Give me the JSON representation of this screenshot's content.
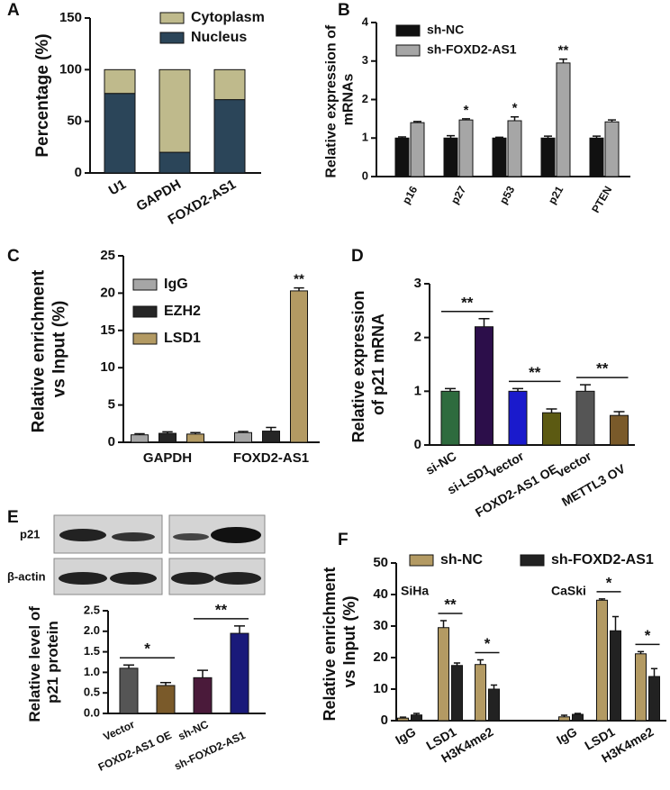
{
  "chart_data": [
    {
      "type": "bar",
      "stacked": true,
      "label": "A",
      "ylabel": "Percentage (%)",
      "categories": [
        "U1",
        "GAPDH",
        "FOXD2-AS1"
      ],
      "series": [
        {
          "name": "Nucleus",
          "color": "#2b4559",
          "values": [
            77,
            20,
            71
          ]
        },
        {
          "name": "Cytoplasm",
          "color": "#bfba8c",
          "values": [
            23,
            80,
            29
          ]
        }
      ],
      "ylim": [
        0,
        150
      ],
      "yticks": [
        0,
        50,
        100,
        150
      ]
    },
    {
      "type": "bar",
      "label": "B",
      "ylabel": "Relative expression of mRNAs",
      "categories": [
        "p16",
        "p27",
        "p53",
        "p21",
        "PTEN"
      ],
      "series": [
        {
          "name": "sh-NC",
          "color": "#111111",
          "values": [
            1,
            1,
            1,
            1,
            1
          ],
          "errors": [
            0.03,
            0.06,
            0.02,
            0.05,
            0.05
          ]
        },
        {
          "name": "sh-FOXD2-AS1",
          "color": "#a6a6a6",
          "values": [
            1.4,
            1.47,
            1.45,
            2.95,
            1.42
          ],
          "errors": [
            0.03,
            0.03,
            0.1,
            0.1,
            0.05
          ]
        }
      ],
      "ylim": [
        0,
        4
      ],
      "yticks": [
        0,
        1,
        2,
        3,
        4
      ],
      "annotations": [
        "*",
        "*",
        "**"
      ]
    },
    {
      "type": "bar",
      "label": "C",
      "ylabel": "Relative enrichment vs Input (%)",
      "categories": [
        "GAPDH",
        "FOXD2-AS1"
      ],
      "series": [
        {
          "name": "IgG",
          "color": "#a6a6a6",
          "values": [
            1.0,
            1.3
          ],
          "errors": [
            0.15,
            0.15
          ]
        },
        {
          "name": "EZH2",
          "color": "#262626",
          "values": [
            1.2,
            1.5
          ],
          "errors": [
            0.2,
            0.5
          ]
        },
        {
          "name": "LSD1",
          "color": "#b39a63",
          "values": [
            1.1,
            20.3
          ],
          "errors": [
            0.2,
            0.4
          ]
        }
      ],
      "ylim": [
        0,
        25
      ],
      "yticks": [
        0,
        5,
        10,
        15,
        20,
        25
      ],
      "annotations": [
        "**"
      ]
    },
    {
      "type": "bar",
      "label": "D",
      "ylabel": "Relative expression of p21 mRNA",
      "categories": [
        "si-NC",
        "si-LSD1",
        "vector",
        "FOXD2-AS1 OE",
        "vector",
        "METTL3 OV"
      ],
      "values": [
        1.0,
        2.2,
        1.0,
        0.6,
        1.0,
        0.55
      ],
      "errors": [
        0.05,
        0.15,
        0.05,
        0.07,
        0.12,
        0.07
      ],
      "colors": [
        "#2e6b3e",
        "#2c0e4a",
        "#1a1acc",
        "#5c5a12",
        "#555555",
        "#7a5a2a"
      ],
      "ylim": [
        0,
        3
      ],
      "yticks": [
        0,
        1,
        2,
        3
      ],
      "annotations": [
        "**",
        "**",
        "**"
      ]
    },
    {
      "type": "bar",
      "label": "E",
      "ylabel": "Relative level of p21 protein",
      "blot_labels": [
        "p21",
        "β-actin"
      ],
      "categories": [
        "Vector",
        "FOXD2-AS1 OE",
        "sh-NC",
        "sh-FOXD2-AS1"
      ],
      "values": [
        1.1,
        0.68,
        0.87,
        1.95
      ],
      "errors": [
        0.08,
        0.07,
        0.18,
        0.18
      ],
      "colors": [
        "#555555",
        "#7a5a2a",
        "#4a1a3a",
        "#1a1a7a"
      ],
      "ylim": [
        0,
        2.5
      ],
      "yticks": [
        {
          "value": 0,
          "label": "0.0"
        },
        0.5,
        {
          "value": 1,
          "label": "1.0"
        },
        1.5,
        {
          "value": 2,
          "label": "2.0"
        },
        2.5
      ],
      "annotations": [
        "*",
        "**"
      ]
    },
    {
      "type": "bar",
      "label": "F",
      "ylabel": "Relative enrichment vs Input (%)",
      "group_labels": [
        "SiHa",
        "CaSki"
      ],
      "categories": [
        "IgG",
        "LSD1",
        "H3K4me2",
        "IgG",
        "LSD1",
        "H3K4me2"
      ],
      "series": [
        {
          "name": "sh-NC",
          "color": "#b39a63",
          "values": [
            0.8,
            29.5,
            17.8,
            1.2,
            38.2,
            21.2
          ],
          "errors": [
            0.3,
            2.2,
            1.5,
            0.5,
            0.4,
            0.7
          ]
        },
        {
          "name": "sh-FOXD2-AS1",
          "color": "#222222",
          "values": [
            1.8,
            17.5,
            10,
            2,
            28.5,
            14
          ],
          "errors": [
            0.5,
            0.8,
            1.3,
            0.3,
            4.5,
            2.5
          ]
        }
      ],
      "ylim": [
        0,
        50
      ],
      "yticks": [
        0,
        10,
        20,
        30,
        40,
        50
      ],
      "annotations": [
        "**",
        "*",
        "*",
        "*"
      ]
    }
  ]
}
